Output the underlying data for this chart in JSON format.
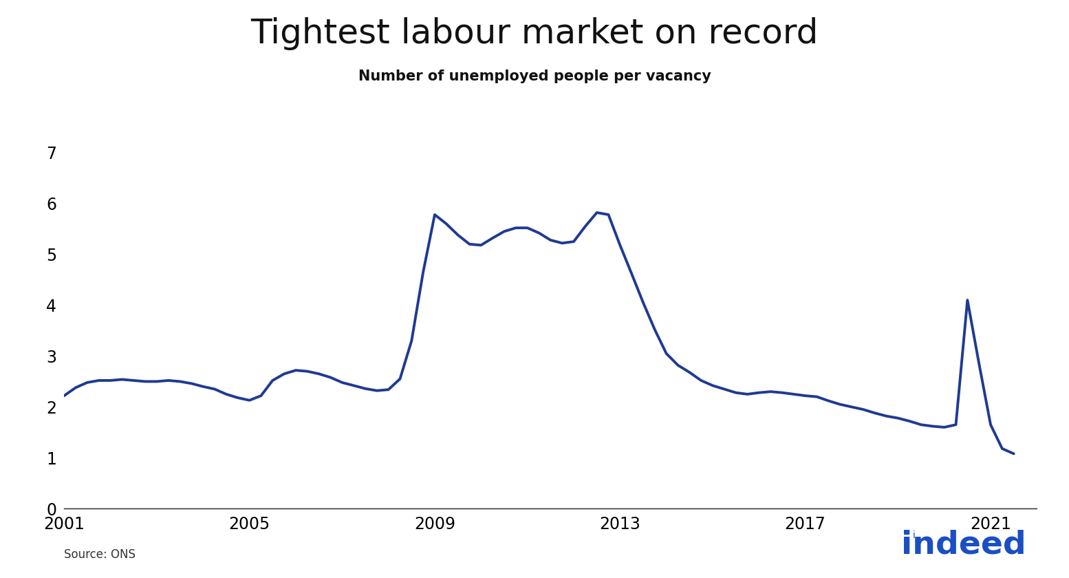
{
  "title": "Tightest labour market on record",
  "subtitle": "Number of unemployed people per vacancy",
  "source": "Source: ONS",
  "line_color": "#1F3A93",
  "background_color": "#ffffff",
  "ylim": [
    0,
    7.5
  ],
  "yticks": [
    0,
    1,
    2,
    3,
    4,
    5,
    6,
    7
  ],
  "xticks": [
    2001,
    2005,
    2009,
    2013,
    2017,
    2021
  ],
  "xlim": [
    2001,
    2022.0
  ],
  "title_fontsize": 36,
  "subtitle_fontsize": 15,
  "tick_fontsize": 17,
  "line_width": 2.8,
  "indeed_color": "#1A4FC4",
  "data": {
    "x": [
      2001.0,
      2001.25,
      2001.5,
      2001.75,
      2002.0,
      2002.25,
      2002.5,
      2002.75,
      2003.0,
      2003.25,
      2003.5,
      2003.75,
      2004.0,
      2004.25,
      2004.5,
      2004.75,
      2005.0,
      2005.25,
      2005.5,
      2005.75,
      2006.0,
      2006.25,
      2006.5,
      2006.75,
      2007.0,
      2007.25,
      2007.5,
      2007.75,
      2008.0,
      2008.25,
      2008.5,
      2008.75,
      2009.0,
      2009.25,
      2009.5,
      2009.75,
      2010.0,
      2010.25,
      2010.5,
      2010.75,
      2011.0,
      2011.25,
      2011.5,
      2011.75,
      2012.0,
      2012.25,
      2012.5,
      2012.75,
      2013.0,
      2013.25,
      2013.5,
      2013.75,
      2014.0,
      2014.25,
      2014.5,
      2014.75,
      2015.0,
      2015.25,
      2015.5,
      2015.75,
      2016.0,
      2016.25,
      2016.5,
      2016.75,
      2017.0,
      2017.25,
      2017.5,
      2017.75,
      2018.0,
      2018.25,
      2018.5,
      2018.75,
      2019.0,
      2019.25,
      2019.5,
      2019.75,
      2020.0,
      2020.25,
      2020.5,
      2020.75,
      2021.0,
      2021.25,
      2021.5
    ],
    "y": [
      2.22,
      2.38,
      2.48,
      2.52,
      2.52,
      2.54,
      2.52,
      2.5,
      2.5,
      2.52,
      2.5,
      2.46,
      2.4,
      2.35,
      2.25,
      2.18,
      2.13,
      2.22,
      2.52,
      2.65,
      2.72,
      2.7,
      2.65,
      2.58,
      2.48,
      2.42,
      2.36,
      2.32,
      2.34,
      2.55,
      3.3,
      4.65,
      5.78,
      5.6,
      5.38,
      5.2,
      5.18,
      5.32,
      5.45,
      5.52,
      5.52,
      5.42,
      5.28,
      5.22,
      5.25,
      5.55,
      5.82,
      5.78,
      5.18,
      4.62,
      4.05,
      3.52,
      3.05,
      2.82,
      2.68,
      2.52,
      2.42,
      2.35,
      2.28,
      2.25,
      2.28,
      2.3,
      2.28,
      2.25,
      2.22,
      2.2,
      2.12,
      2.05,
      2.0,
      1.95,
      1.88,
      1.82,
      1.78,
      1.72,
      1.65,
      1.62,
      1.6,
      1.65,
      4.1,
      2.85,
      1.65,
      1.18,
      1.08
    ]
  }
}
